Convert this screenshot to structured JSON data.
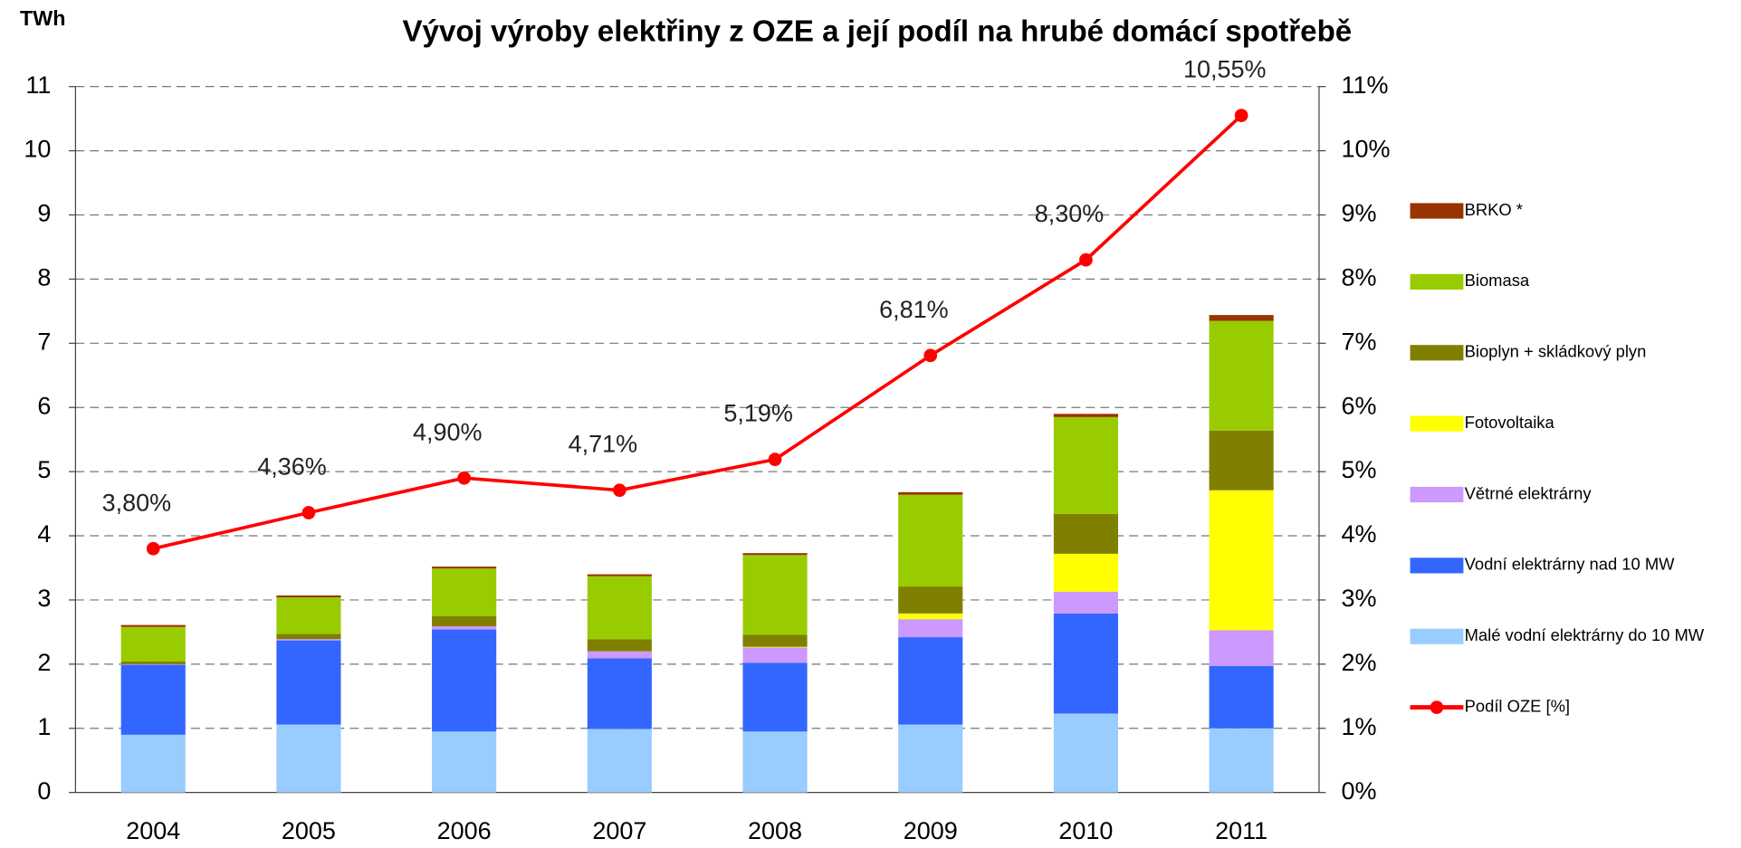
{
  "chart_data": {
    "type": "bar",
    "stacked": true,
    "title": "Vývoj výroby elektřiny z OZE a její podíl na hrubé domácí spotřebě",
    "y_label": "TWh",
    "categories": [
      "2004",
      "2005",
      "2006",
      "2007",
      "2008",
      "2009",
      "2010",
      "2011"
    ],
    "series": [
      {
        "name": "Malé vodní elektrárny do 10 MW",
        "color": "#99ccff",
        "type": "bar",
        "values": [
          0.9,
          1.06,
          0.95,
          0.99,
          0.95,
          1.06,
          1.23,
          1.0
        ]
      },
      {
        "name": "Vodní elektrárny nad 10 MW",
        "color": "#3366ff",
        "type": "bar",
        "values": [
          1.09,
          1.31,
          1.59,
          1.1,
          1.07,
          1.36,
          1.56,
          0.97
        ]
      },
      {
        "name": "Větrné elektrárny",
        "color": "#cc99ff",
        "type": "bar",
        "values": [
          0.01,
          0.02,
          0.05,
          0.11,
          0.24,
          0.28,
          0.34,
          0.56
        ]
      },
      {
        "name": "Fotovoltaika",
        "color": "#ffff00",
        "type": "bar",
        "values": [
          0,
          0,
          0,
          0,
          0.01,
          0.09,
          0.59,
          2.18
        ]
      },
      {
        "name": "Bioplyn + skládkový plyn",
        "color": "#808000",
        "type": "bar",
        "values": [
          0.04,
          0.08,
          0.16,
          0.19,
          0.19,
          0.42,
          0.62,
          0.93
        ]
      },
      {
        "name": "Biomasa",
        "color": "#99cc00",
        "type": "bar",
        "values": [
          0.54,
          0.57,
          0.74,
          0.98,
          1.24,
          1.43,
          1.51,
          1.71
        ]
      },
      {
        "name": "BRKO *",
        "color": "#993300",
        "type": "bar",
        "values": [
          0.03,
          0.03,
          0.03,
          0.03,
          0.03,
          0.04,
          0.05,
          0.09
        ]
      },
      {
        "name": "Podíl OZE [%]",
        "color": "#ff0000",
        "type": "line",
        "axis": "y2",
        "values": [
          3.8,
          4.36,
          4.9,
          4.71,
          5.19,
          6.81,
          8.3,
          10.55
        ],
        "value_labels": [
          "3,80%",
          "4,36%",
          "4,90%",
          "4,71%",
          "5,19%",
          "6,81%",
          "8,30%",
          "10,55%"
        ]
      }
    ],
    "ylim": [
      0,
      11
    ],
    "yticks": [
      0,
      1,
      2,
      3,
      4,
      5,
      6,
      7,
      8,
      9,
      10,
      11
    ],
    "y2lim": [
      0,
      11
    ],
    "y2ticks": [
      {
        "value": 0,
        "label": "0%"
      },
      {
        "value": 1,
        "label": "1%"
      },
      {
        "value": 2,
        "label": "2%"
      },
      {
        "value": 3,
        "label": "3%"
      },
      {
        "value": 4,
        "label": "4%"
      },
      {
        "value": 5,
        "label": "5%"
      },
      {
        "value": 6,
        "label": "6%"
      },
      {
        "value": 7,
        "label": "7%"
      },
      {
        "value": 8,
        "label": "8%"
      },
      {
        "value": 9,
        "label": "9%"
      },
      {
        "value": 10,
        "label": "10%"
      },
      {
        "value": 11,
        "label": "11%"
      }
    ],
    "grid": true,
    "legend": "right"
  }
}
